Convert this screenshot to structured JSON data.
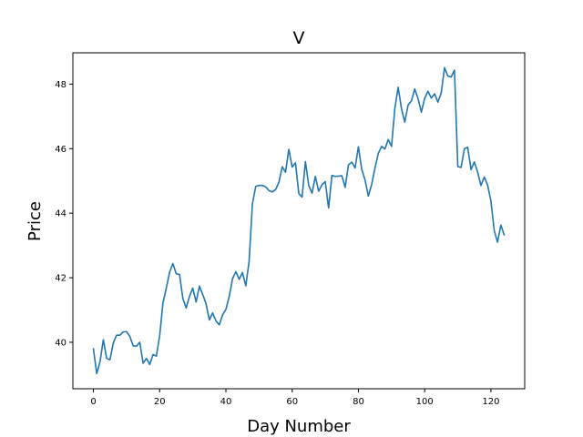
{
  "chart_data": {
    "type": "line",
    "title": "V",
    "xlabel": "Day Number",
    "ylabel": "Price",
    "xlim": [
      -6.2,
      130.2
    ],
    "ylim": [
      38.56,
      48.97
    ],
    "xticks": [
      0,
      20,
      40,
      60,
      80,
      100,
      120
    ],
    "yticks": [
      40,
      42,
      44,
      46,
      48
    ],
    "xtick_labels": [
      "0",
      "20",
      "40",
      "60",
      "80",
      "100",
      "120"
    ],
    "ytick_labels": [
      "40",
      "42",
      "44",
      "46",
      "48"
    ],
    "grid": false,
    "line_color": "#1f77b4",
    "series": [
      {
        "x": [
          0,
          1,
          2,
          3,
          4,
          5,
          6,
          7,
          8,
          9,
          10,
          11,
          12,
          13,
          14,
          15,
          16,
          17,
          18,
          19,
          20,
          21,
          22,
          23,
          24,
          25,
          26,
          27,
          28,
          29,
          30,
          31,
          32,
          33,
          34,
          35,
          36,
          37,
          38,
          39,
          40,
          41,
          42,
          43,
          44,
          45,
          46,
          47,
          48,
          49,
          50,
          51,
          52,
          53,
          54,
          55,
          56,
          57,
          58,
          59,
          60,
          61,
          62,
          63,
          64,
          65,
          66,
          67,
          68,
          69,
          70,
          71,
          72,
          73,
          74,
          75,
          76,
          77,
          78,
          79,
          80,
          81,
          82,
          83,
          84,
          85,
          86,
          87,
          88,
          89,
          90,
          91,
          92,
          93,
          94,
          95,
          96,
          97,
          98,
          99,
          100,
          101,
          102,
          103,
          104,
          105,
          106,
          107,
          108,
          109,
          110,
          111,
          112,
          113,
          114,
          115,
          116,
          117,
          118,
          119,
          120,
          121,
          122,
          123,
          124
        ],
        "values": [
          39.8,
          39.03,
          39.4,
          40.08,
          39.5,
          39.46,
          39.98,
          40.22,
          40.22,
          40.32,
          40.33,
          40.18,
          39.89,
          39.88,
          40.0,
          39.35,
          39.5,
          39.31,
          39.62,
          39.57,
          40.2,
          41.22,
          41.68,
          42.17,
          42.44,
          42.12,
          42.1,
          41.36,
          41.06,
          41.42,
          41.68,
          41.25,
          41.74,
          41.48,
          41.2,
          40.69,
          40.91,
          40.66,
          40.54,
          40.85,
          41.02,
          41.42,
          41.97,
          42.19,
          41.95,
          42.16,
          41.75,
          42.5,
          44.29,
          44.83,
          44.86,
          44.86,
          44.82,
          44.7,
          44.66,
          44.73,
          44.96,
          45.44,
          45.27,
          45.98,
          45.43,
          45.56,
          44.61,
          44.5,
          45.6,
          44.86,
          44.62,
          45.14,
          44.68,
          44.88,
          44.98,
          44.16,
          45.17,
          45.14,
          45.15,
          45.16,
          44.8,
          45.5,
          45.58,
          45.4,
          46.06,
          45.36,
          45.03,
          44.53,
          44.89,
          45.4,
          45.85,
          46.07,
          45.99,
          46.28,
          46.07,
          47.25,
          47.9,
          47.24,
          46.82,
          47.35,
          47.48,
          47.85,
          47.55,
          47.13,
          47.56,
          47.78,
          47.57,
          47.7,
          47.44,
          47.73,
          48.51,
          48.25,
          48.22,
          48.43,
          45.44,
          45.42,
          46.0,
          46.04,
          45.35,
          45.59,
          45.27,
          44.86,
          45.12,
          44.87,
          44.38,
          43.46,
          43.1,
          43.63,
          43.33
        ]
      }
    ]
  }
}
